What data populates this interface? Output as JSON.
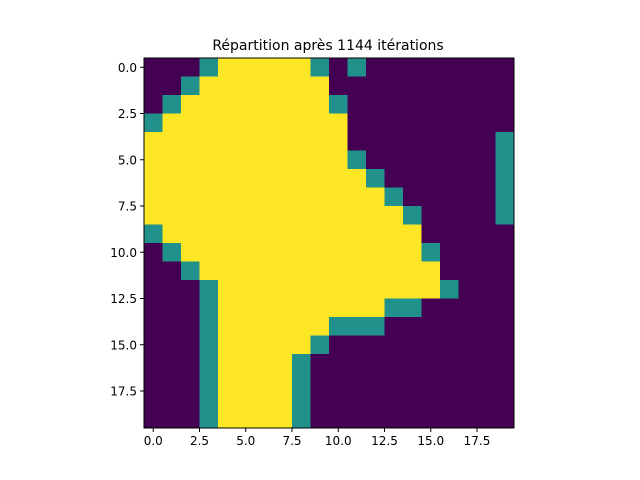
{
  "chart_data": {
    "type": "heatmap",
    "title": "Répartition après 1144 itérations",
    "xlabel": "",
    "ylabel": "",
    "rows": 20,
    "cols": 20,
    "colors": {
      "0": "#440154",
      "1": "#21918c",
      "2": "#fde725"
    },
    "xticks": [
      0,
      2.5,
      5,
      7.5,
      10,
      12.5,
      15,
      17.5
    ],
    "xtick_labels": [
      "0.0",
      "2.5",
      "5.0",
      "7.5",
      "10.0",
      "12.5",
      "15.0",
      "17.5"
    ],
    "yticks": [
      0,
      2.5,
      5,
      7.5,
      10,
      12.5,
      15,
      17.5
    ],
    "ytick_labels": [
      "0.0",
      "2.5",
      "5.0",
      "7.5",
      "10.0",
      "12.5",
      "15.0",
      "17.5"
    ],
    "grid": [
      [
        0,
        0,
        0,
        1,
        2,
        2,
        2,
        2,
        2,
        1,
        0,
        1,
        0,
        0,
        0,
        0,
        0,
        0,
        0,
        0
      ],
      [
        0,
        0,
        1,
        2,
        2,
        2,
        2,
        2,
        2,
        2,
        0,
        0,
        0,
        0,
        0,
        0,
        0,
        0,
        0,
        0
      ],
      [
        0,
        1,
        2,
        2,
        2,
        2,
        2,
        2,
        2,
        2,
        1,
        0,
        0,
        0,
        0,
        0,
        0,
        0,
        0,
        0
      ],
      [
        1,
        2,
        2,
        2,
        2,
        2,
        2,
        2,
        2,
        2,
        2,
        0,
        0,
        0,
        0,
        0,
        0,
        0,
        0,
        0
      ],
      [
        2,
        2,
        2,
        2,
        2,
        2,
        2,
        2,
        2,
        2,
        2,
        0,
        0,
        0,
        0,
        0,
        0,
        0,
        0,
        1
      ],
      [
        2,
        2,
        2,
        2,
        2,
        2,
        2,
        2,
        2,
        2,
        2,
        1,
        0,
        0,
        0,
        0,
        0,
        0,
        0,
        1
      ],
      [
        2,
        2,
        2,
        2,
        2,
        2,
        2,
        2,
        2,
        2,
        2,
        2,
        1,
        0,
        0,
        0,
        0,
        0,
        0,
        1
      ],
      [
        2,
        2,
        2,
        2,
        2,
        2,
        2,
        2,
        2,
        2,
        2,
        2,
        2,
        1,
        0,
        0,
        0,
        0,
        0,
        1
      ],
      [
        2,
        2,
        2,
        2,
        2,
        2,
        2,
        2,
        2,
        2,
        2,
        2,
        2,
        2,
        1,
        0,
        0,
        0,
        0,
        1
      ],
      [
        1,
        2,
        2,
        2,
        2,
        2,
        2,
        2,
        2,
        2,
        2,
        2,
        2,
        2,
        2,
        0,
        0,
        0,
        0,
        0
      ],
      [
        0,
        1,
        2,
        2,
        2,
        2,
        2,
        2,
        2,
        2,
        2,
        2,
        2,
        2,
        2,
        1,
        0,
        0,
        0,
        0
      ],
      [
        0,
        0,
        1,
        2,
        2,
        2,
        2,
        2,
        2,
        2,
        2,
        2,
        2,
        2,
        2,
        2,
        0,
        0,
        0,
        0
      ],
      [
        0,
        0,
        0,
        1,
        2,
        2,
        2,
        2,
        2,
        2,
        2,
        2,
        2,
        2,
        2,
        2,
        1,
        0,
        0,
        0
      ],
      [
        0,
        0,
        0,
        1,
        2,
        2,
        2,
        2,
        2,
        2,
        2,
        2,
        2,
        1,
        1,
        0,
        0,
        0,
        0,
        0
      ],
      [
        0,
        0,
        0,
        1,
        2,
        2,
        2,
        2,
        2,
        2,
        1,
        1,
        1,
        0,
        0,
        0,
        0,
        0,
        0,
        0
      ],
      [
        0,
        0,
        0,
        1,
        2,
        2,
        2,
        2,
        2,
        1,
        0,
        0,
        0,
        0,
        0,
        0,
        0,
        0,
        0,
        0
      ],
      [
        0,
        0,
        0,
        1,
        2,
        2,
        2,
        2,
        1,
        0,
        0,
        0,
        0,
        0,
        0,
        0,
        0,
        0,
        0,
        0
      ],
      [
        0,
        0,
        0,
        1,
        2,
        2,
        2,
        2,
        1,
        0,
        0,
        0,
        0,
        0,
        0,
        0,
        0,
        0,
        0,
        0
      ],
      [
        0,
        0,
        0,
        1,
        2,
        2,
        2,
        2,
        1,
        0,
        0,
        0,
        0,
        0,
        0,
        0,
        0,
        0,
        0,
        0
      ],
      [
        0,
        0,
        0,
        1,
        2,
        2,
        2,
        2,
        1,
        0,
        0,
        0,
        0,
        0,
        0,
        0,
        0,
        0,
        0,
        0
      ]
    ]
  }
}
